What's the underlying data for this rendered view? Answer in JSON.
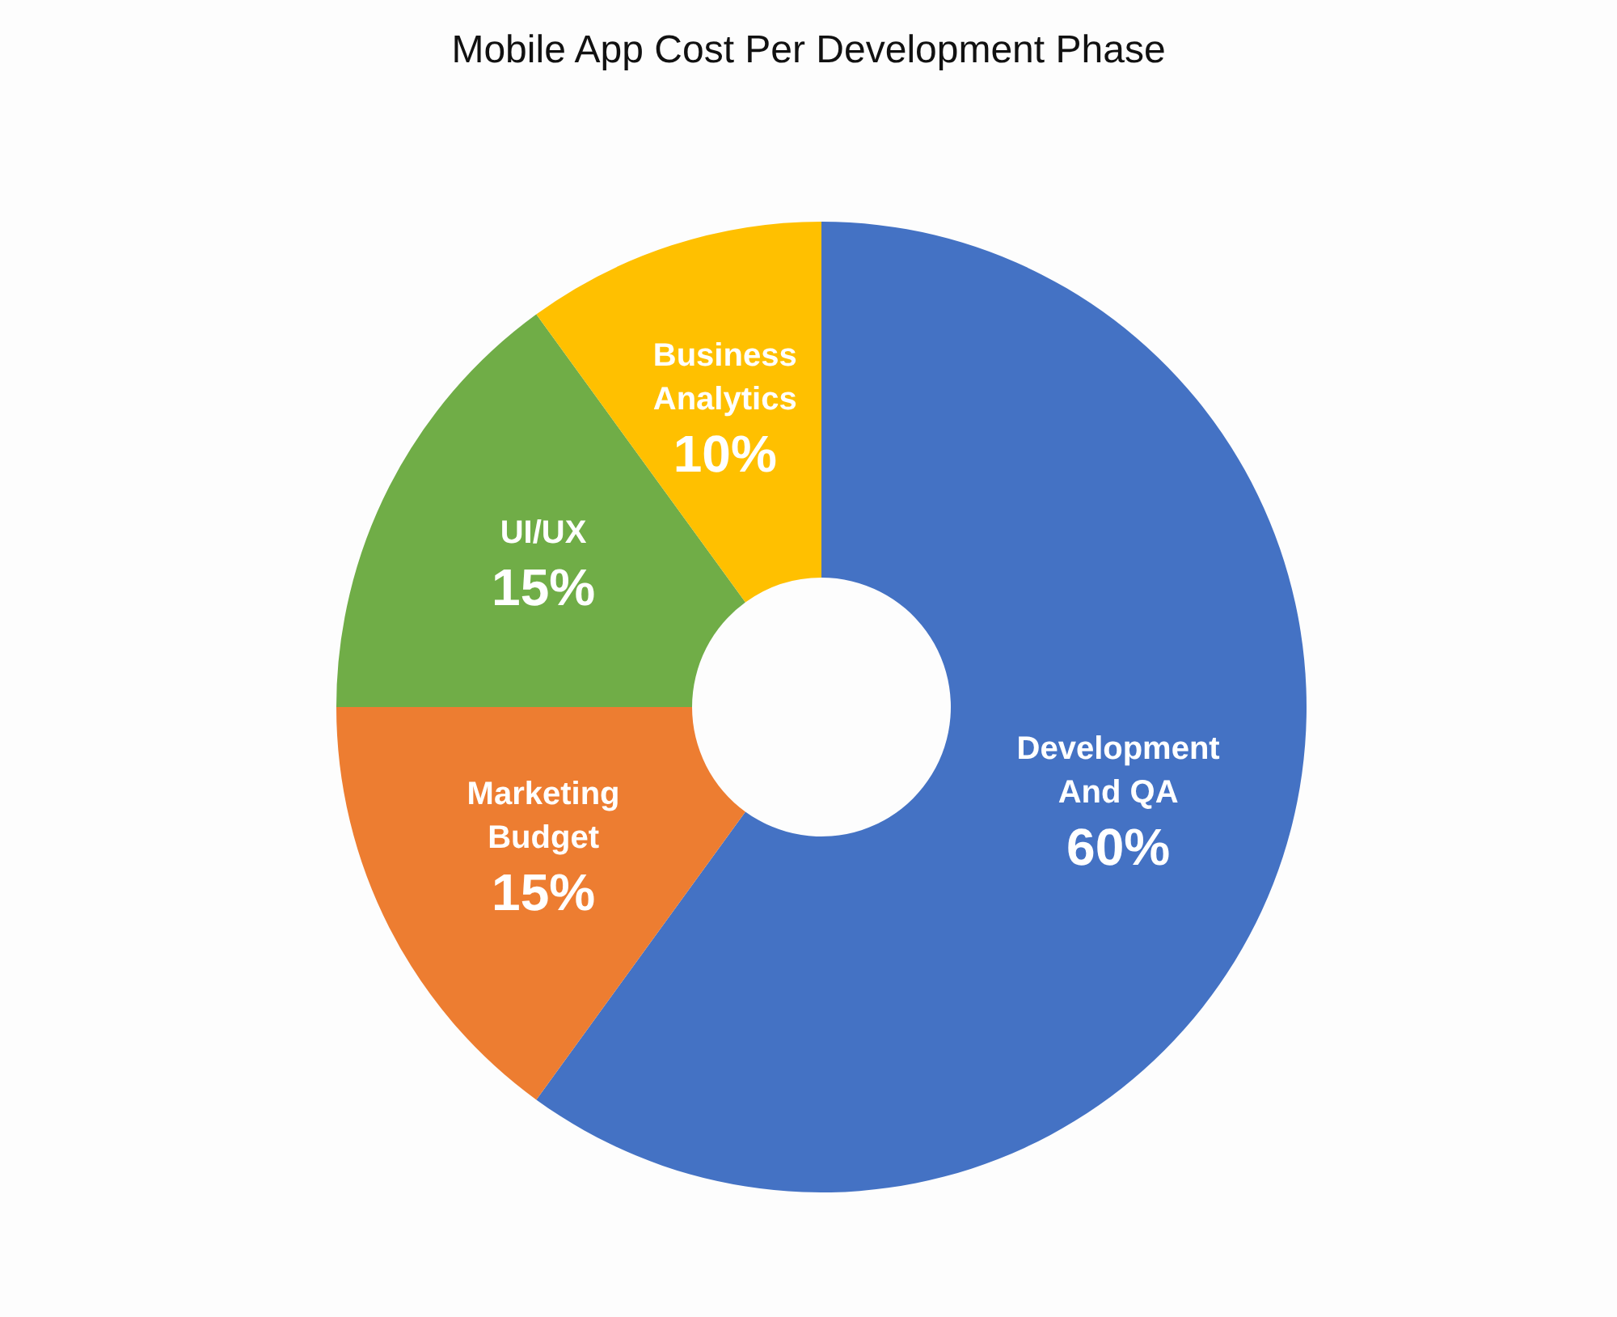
{
  "chart_data": {
    "type": "donut",
    "title": "Mobile App Cost Per Development Phase",
    "categories": [
      "Development And QA",
      "Marketing Budget",
      "UI/UX",
      "Business Analytics"
    ],
    "values": [
      60,
      15,
      15,
      10
    ],
    "colors": [
      "#4472c4",
      "#ed7d31",
      "#70ad47",
      "#ffc000"
    ],
    "value_labels": [
      "60%",
      "15%",
      "15%",
      "10%"
    ]
  }
}
